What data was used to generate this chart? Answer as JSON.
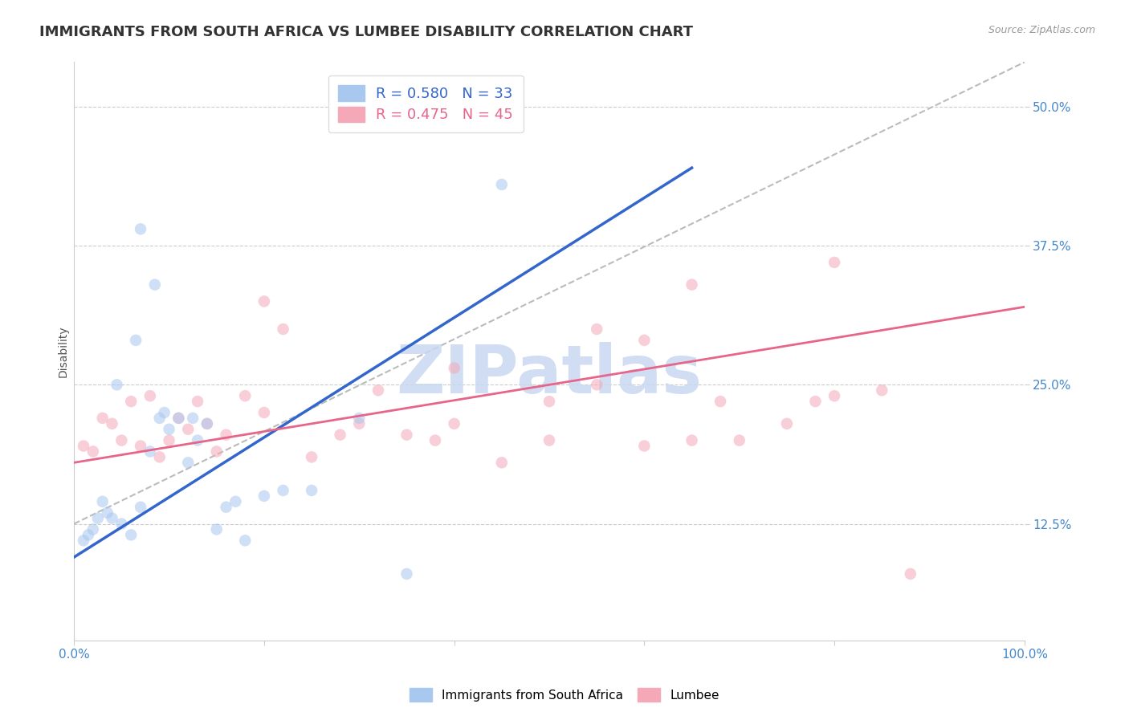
{
  "title": "IMMIGRANTS FROM SOUTH AFRICA VS LUMBEE DISABILITY CORRELATION CHART",
  "source": "Source: ZipAtlas.com",
  "ylabel": "Disability",
  "watermark": "ZIPatlas",
  "legend_r1": "R = 0.580",
  "legend_n1": "N = 33",
  "legend_r2": "R = 0.475",
  "legend_n2": "N = 45",
  "series1_label": "Immigrants from South Africa",
  "series2_label": "Lumbee",
  "series1_color": "#A8C8F0",
  "series2_color": "#F4A8B8",
  "series1_line_color": "#3366CC",
  "series2_line_color": "#E8658A",
  "xlim": [
    0,
    100
  ],
  "ylim": [
    2,
    54
  ],
  "yticks": [
    12.5,
    25.0,
    37.5,
    50.0
  ],
  "ytick_labels": [
    "12.5%",
    "25.0%",
    "37.5%",
    "50.0%"
  ],
  "xtick_positions": [
    0,
    20,
    40,
    60,
    80,
    100
  ],
  "xtick_labels": [
    "0.0%",
    "",
    "",
    "",
    "",
    "100.0%"
  ],
  "series1_x": [
    1.0,
    1.5,
    2.0,
    2.5,
    3.0,
    3.5,
    4.0,
    5.0,
    6.0,
    7.0,
    8.0,
    9.0,
    10.0,
    11.0,
    12.0,
    13.0,
    14.0,
    15.0,
    16.0,
    17.0,
    18.0,
    20.0,
    22.0,
    25.0,
    30.0,
    35.0,
    7.0,
    8.5,
    4.5,
    6.5,
    9.5,
    12.5,
    45.0
  ],
  "series1_y": [
    11.0,
    11.5,
    12.0,
    13.0,
    14.5,
    13.5,
    13.0,
    12.5,
    11.5,
    14.0,
    19.0,
    22.0,
    21.0,
    22.0,
    18.0,
    20.0,
    21.5,
    12.0,
    14.0,
    14.5,
    11.0,
    15.0,
    15.5,
    15.5,
    22.0,
    8.0,
    39.0,
    34.0,
    25.0,
    29.0,
    22.5,
    22.0,
    43.0
  ],
  "series2_x": [
    1.0,
    2.0,
    3.0,
    4.0,
    5.0,
    6.0,
    7.0,
    8.0,
    9.0,
    10.0,
    11.0,
    12.0,
    13.0,
    14.0,
    15.0,
    16.0,
    18.0,
    20.0,
    22.0,
    25.0,
    28.0,
    30.0,
    32.0,
    35.0,
    38.0,
    40.0,
    45.0,
    50.0,
    55.0,
    60.0,
    65.0,
    68.0,
    70.0,
    75.0,
    78.0,
    80.0,
    85.0,
    88.0,
    40.0,
    50.0,
    55.0,
    60.0,
    65.0,
    80.0,
    20.0
  ],
  "series2_y": [
    19.5,
    19.0,
    22.0,
    21.5,
    20.0,
    23.5,
    19.5,
    24.0,
    18.5,
    20.0,
    22.0,
    21.0,
    23.5,
    21.5,
    19.0,
    20.5,
    24.0,
    22.5,
    30.0,
    18.5,
    20.5,
    21.5,
    24.5,
    20.5,
    20.0,
    21.5,
    18.0,
    20.0,
    30.0,
    29.0,
    20.0,
    23.5,
    20.0,
    21.5,
    23.5,
    36.0,
    24.5,
    8.0,
    26.5,
    23.5,
    25.0,
    19.5,
    34.0,
    24.0,
    32.5
  ],
  "trend1_x0": 0,
  "trend1_y0": 9.5,
  "trend1_x1": 65,
  "trend1_y1": 44.5,
  "trend2_x0": 0,
  "trend2_y0": 18.0,
  "trend2_x1": 100,
  "trend2_y1": 32.0,
  "ref_line_x0": 0,
  "ref_line_y0": 12.5,
  "ref_line_x1": 100,
  "ref_line_y1": 54,
  "ref_line_color": "#BBBBBB",
  "grid_color": "#CCCCCC",
  "tick_color": "#4488CC",
  "background_color": "#FFFFFF",
  "title_fontsize": 13,
  "axis_label_fontsize": 10,
  "tick_fontsize": 11,
  "legend_fontsize": 13,
  "watermark_fontsize": 60,
  "watermark_color": "#C8D8F0",
  "marker_size": 110,
  "marker_alpha": 0.55
}
